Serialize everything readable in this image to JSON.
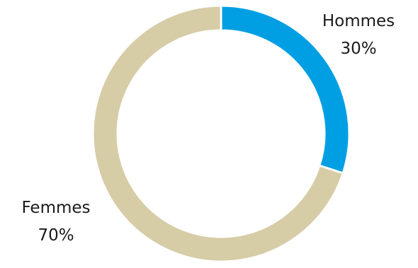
{
  "chart_data": {
    "type": "pie",
    "variant": "donut",
    "title": "",
    "series": [
      {
        "name": "Hommes",
        "value": 30,
        "value_label": "30%",
        "color": "#009fe3"
      },
      {
        "name": "Femmes",
        "value": 70,
        "value_label": "70%",
        "color": "#d6cca6"
      }
    ]
  }
}
